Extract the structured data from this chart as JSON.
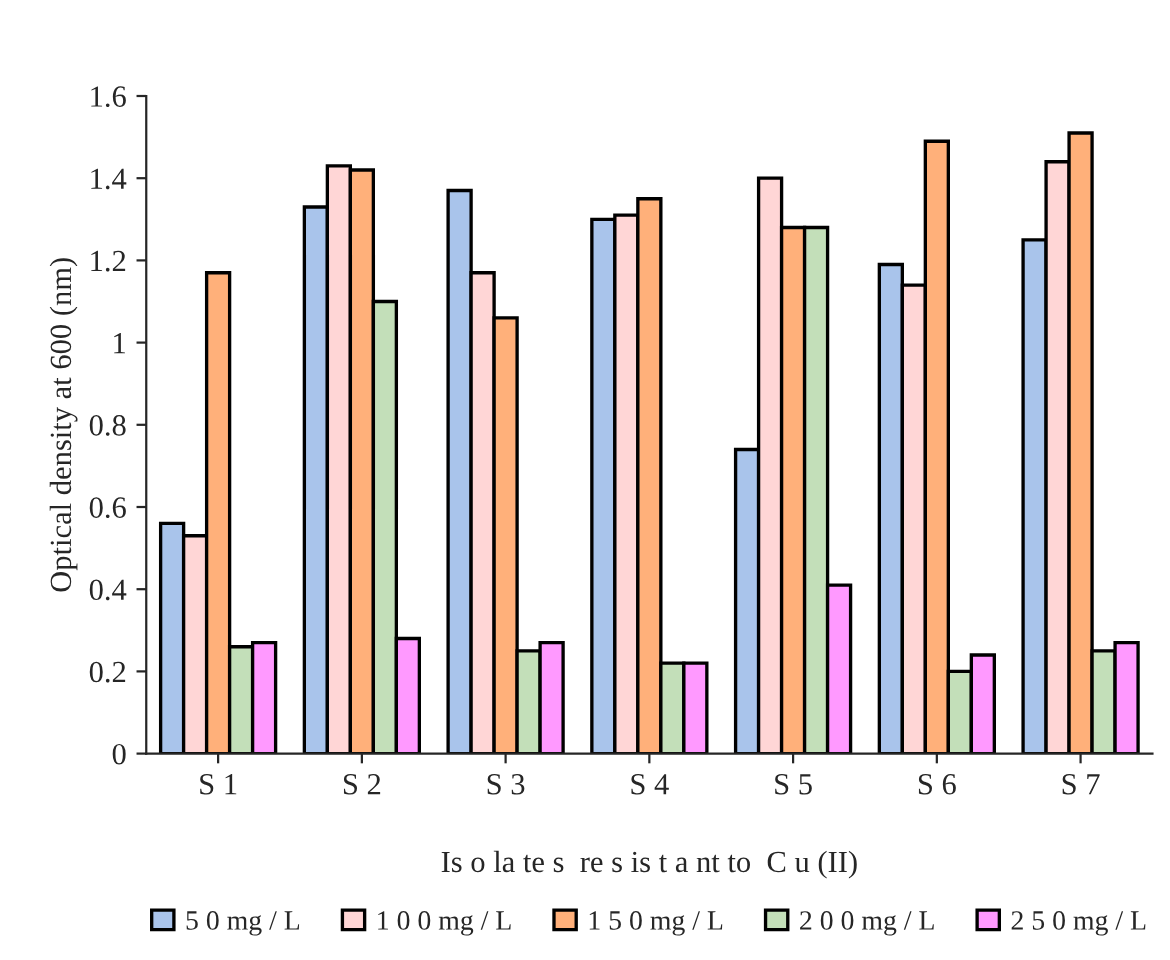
{
  "chart_data": {
    "type": "bar",
    "xlabel": "Is o la te s  re s is t a nt to  C u (II)",
    "ylabel": "Optical density at 600 (nm)",
    "categories": [
      "S 1",
      "S 2",
      "S 3",
      "S 4",
      "S 5",
      "S 6",
      "S 7"
    ],
    "series": [
      {
        "name": "5 0 mg / L",
        "color": "#a9c4eb",
        "values": [
          0.56,
          1.33,
          1.37,
          1.3,
          0.74,
          1.19,
          1.25
        ]
      },
      {
        "name": "1 0 0 mg / L",
        "color": "#ffd6d6",
        "values": [
          0.53,
          1.43,
          1.17,
          1.31,
          1.4,
          1.14,
          1.44
        ]
      },
      {
        "name": "1 5 0 mg / L",
        "color": "#ffb07a",
        "values": [
          1.17,
          1.42,
          1.06,
          1.35,
          1.28,
          1.49,
          1.51
        ]
      },
      {
        "name": "2 0 0 mg / L",
        "color": "#c3dfb9",
        "values": [
          0.26,
          1.1,
          0.25,
          0.22,
          1.28,
          0.2,
          0.25
        ]
      },
      {
        "name": "2 5 0 mg / L",
        "color": "#ff99ff",
        "values": [
          0.27,
          0.28,
          0.27,
          0.22,
          0.41,
          0.24,
          0.27
        ]
      }
    ],
    "ylim": [
      0,
      1.6
    ],
    "yticks": [
      0,
      0.2,
      0.4,
      0.6,
      0.8,
      1,
      1.2,
      1.4,
      1.6
    ],
    "grid": false,
    "legend": "bottom"
  }
}
